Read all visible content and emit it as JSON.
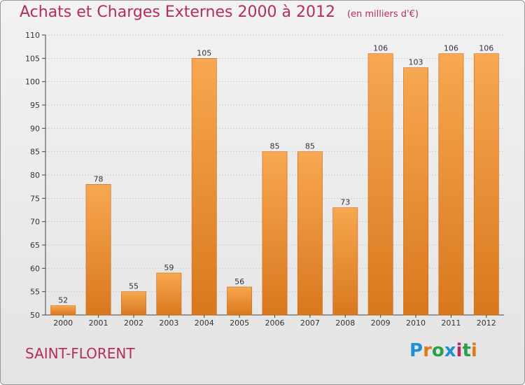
{
  "title": "Achats et Charges Externes 2000 à 2012",
  "unit_note": "(en milliers d'€)",
  "place_name": "SAINT-FLORENT",
  "brand": "Proxiti",
  "colors": {
    "title": "#b62c5d",
    "bar_light": "#f7a850",
    "bar_dark": "#d9781e",
    "axis": "#444444",
    "grid": "#cfcfcf"
  },
  "chart_data": {
    "type": "bar",
    "title": "Achats et Charges Externes 2000 à 2012",
    "subtitle": "(en milliers d'€)",
    "categories": [
      "2000",
      "2001",
      "2002",
      "2003",
      "2004",
      "2005",
      "2006",
      "2007",
      "2008",
      "2009",
      "2010",
      "2011",
      "2012"
    ],
    "values": [
      52,
      78,
      55,
      59,
      105,
      56,
      85,
      85,
      73,
      106,
      103,
      106,
      106
    ],
    "ylim": [
      50,
      110
    ],
    "yticks": [
      50,
      55,
      60,
      65,
      70,
      75,
      80,
      85,
      90,
      95,
      100,
      105,
      110
    ],
    "grid": true,
    "data_labels": true,
    "legend": "none"
  }
}
